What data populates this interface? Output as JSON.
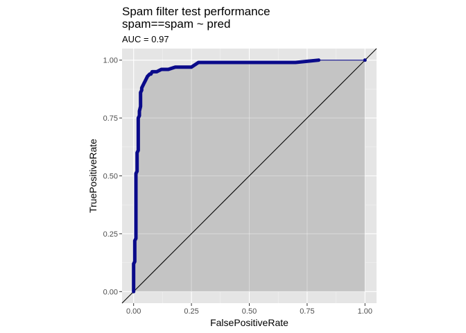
{
  "chart_data": {
    "type": "line",
    "title": "Spam filter test performance",
    "subtitle": "spam==spam ~ pred",
    "annotation": "AUC = 0.97",
    "xlabel": "FalsePositiveRate",
    "ylabel": "TruePositiveRate",
    "xlim": [
      -0.05,
      1.05
    ],
    "ylim": [
      -0.05,
      1.05
    ],
    "x_ticks": [
      0,
      0.25,
      0.5,
      0.75,
      1
    ],
    "x_tick_labels": [
      "0.00",
      "0.25",
      "0.50",
      "0.75",
      "1.00"
    ],
    "y_ticks": [
      0,
      0.25,
      0.5,
      0.75,
      1
    ],
    "y_tick_labels": [
      "0.00",
      "0.25",
      "0.50",
      "0.75",
      "1.00"
    ],
    "grid": true,
    "panel_background": "#e5e5e5",
    "area_fill": "#c4c4c4",
    "curve_color": "#0a0a8a",
    "diagonal_color": "#000000",
    "series": [
      {
        "x": [
          0,
          0,
          0.005,
          0.005,
          0.01,
          0.01,
          0.015,
          0.015,
          0.02,
          0.02,
          0.025,
          0.025,
          0.03,
          0.03,
          0.035,
          0.035,
          0.04,
          0.045,
          0.05,
          0.055,
          0.06,
          0.07,
          0.075,
          0.08,
          0.09,
          0.1,
          0.12,
          0.13,
          0.15,
          0.18,
          0.2,
          0.25,
          0.28,
          0.3,
          0.4,
          0.5,
          0.6,
          0.7,
          0.8,
          1
        ],
        "y": [
          0,
          0.12,
          0.13,
          0.22,
          0.23,
          0.51,
          0.52,
          0.6,
          0.61,
          0.75,
          0.76,
          0.78,
          0.8,
          0.86,
          0.87,
          0.88,
          0.89,
          0.9,
          0.91,
          0.92,
          0.93,
          0.94,
          0.94,
          0.95,
          0.95,
          0.95,
          0.96,
          0.96,
          0.96,
          0.97,
          0.97,
          0.97,
          0.99,
          0.99,
          0.99,
          0.99,
          0.99,
          0.99,
          1,
          1
        ]
      }
    ],
    "reference_line": {
      "x": [
        -0.05,
        1.05
      ],
      "y": [
        -0.05,
        1.05
      ]
    }
  }
}
